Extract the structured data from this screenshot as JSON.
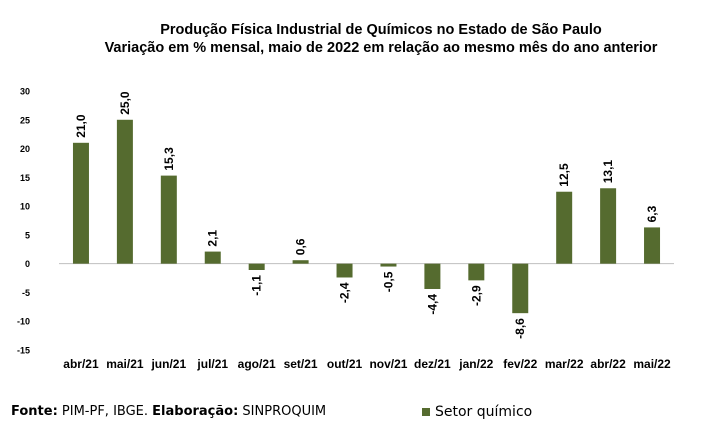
{
  "chart_data": {
    "type": "bar",
    "title": "Produção Física Industrial de Químicos no Estado de São Paulo",
    "subtitle": "Variação em % mensal, maio de 2022 em relação ao mesmo mês do ano anterior",
    "categories": [
      "abr/21",
      "mai/21",
      "jun/21",
      "jul/21",
      "ago/21",
      "set/21",
      "out/21",
      "nov/21",
      "dez/21",
      "jan/22",
      "fev/22",
      "mar/22",
      "abr/22",
      "mai/22"
    ],
    "series": [
      {
        "name": "Setor químico",
        "values": [
          21.0,
          25.0,
          15.3,
          2.1,
          -1.1,
          0.6,
          -2.4,
          -0.5,
          -4.4,
          -2.9,
          -8.6,
          12.5,
          13.1,
          6.3
        ],
        "labels": [
          "21,0",
          "25,0",
          "15,3",
          "2,1",
          "-1,1",
          "0,6",
          "-2,4",
          "-0,5",
          "-4,4",
          "-2,9",
          "-8,6",
          "12,5",
          "13,1",
          "6,3"
        ]
      }
    ],
    "ylim": [
      -15,
      30
    ],
    "yticks": [
      -15,
      -10,
      -5,
      0,
      5,
      10,
      15,
      20,
      25,
      30
    ],
    "grid": false,
    "legend": "bottom-right",
    "bar_color": "#556b2f"
  },
  "footer": {
    "source_prefix": "Fonte:",
    "source_text": " PIM-PF, IBGE. ",
    "elab_prefix": "Elaboração:",
    "elab_text": " SINPROQUIM"
  }
}
